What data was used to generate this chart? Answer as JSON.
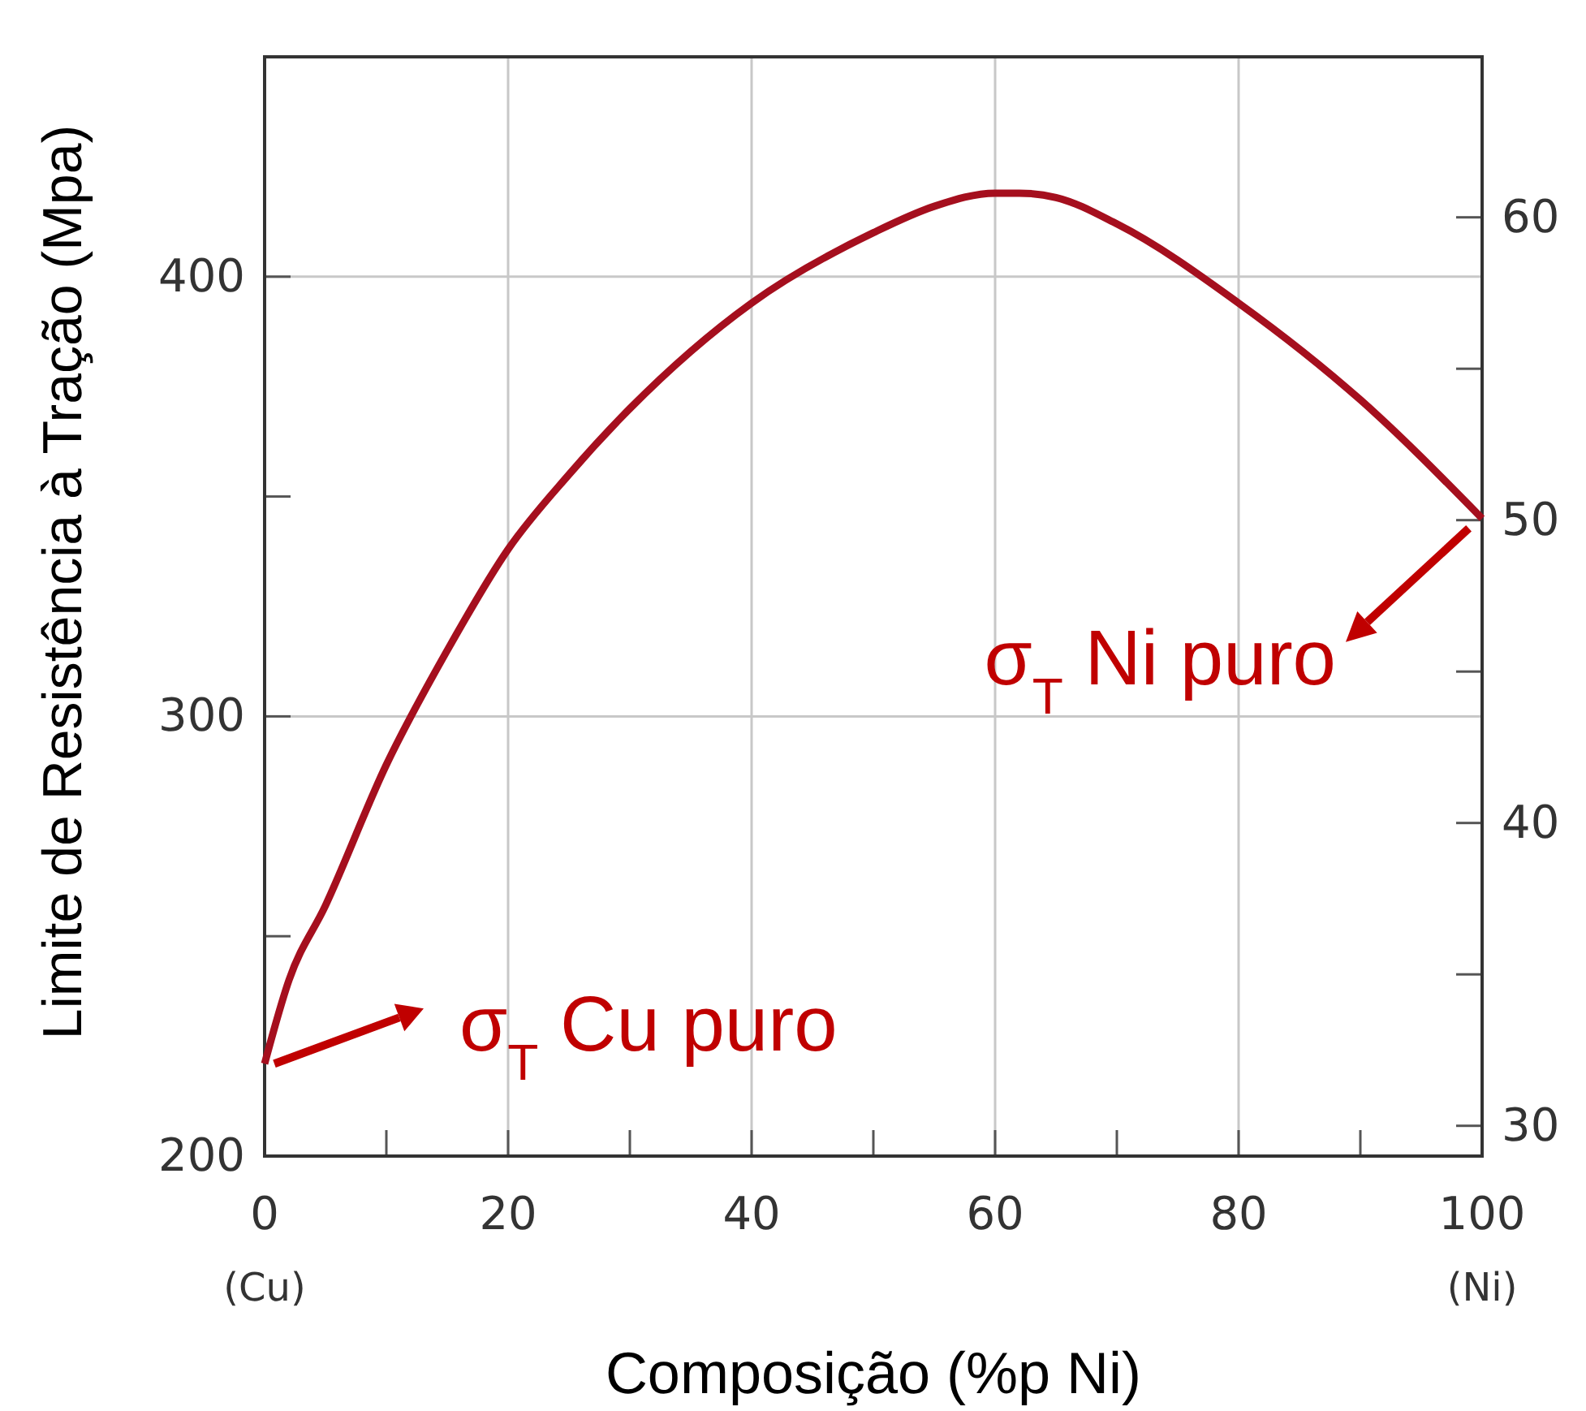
{
  "chart_data": {
    "type": "line",
    "xlabel": "Composição (%p Ni)",
    "ylabel": "Limite de Resistência à Tração  (Mpa)",
    "x": [
      0,
      2,
      5,
      10,
      15,
      20,
      25,
      30,
      40,
      50,
      55,
      60,
      62,
      65,
      70,
      80,
      90,
      100
    ],
    "series": [
      {
        "color": "#a50f1e",
        "values": [
          221,
          240,
          257,
          289,
          315,
          338,
          355,
          370,
          394,
          410,
          416,
          419,
          419,
          418,
          412,
          394,
          372,
          345
        ]
      }
    ],
    "xlim": [
      0,
      100
    ],
    "xticks": [
      {
        "value": 0,
        "label": "0\n(Cu)"
      },
      {
        "value": 10,
        "label": null
      },
      20,
      {
        "value": 30,
        "label": null
      },
      40,
      {
        "value": 50,
        "label": null
      },
      60,
      {
        "value": 70,
        "label": null
      },
      80,
      {
        "value": 90,
        "label": null
      },
      {
        "value": 100,
        "label": "100\n(Ni)"
      }
    ],
    "ylim": [
      200,
      450
    ],
    "yticks": [
      200,
      {
        "value": 250,
        "label": null
      },
      300,
      {
        "value": 350,
        "label": null
      },
      400
    ],
    "y2lim": [
      29.0,
      65.3
    ],
    "y2ticks": [
      30,
      {
        "value": 35,
        "label": null
      },
      40,
      {
        "value": 45,
        "label": null
      },
      50,
      {
        "value": 55,
        "label": null
      },
      60
    ],
    "grid": true,
    "marker": "none",
    "line_style": "solid",
    "annotations": [
      {
        "text": "σ$_{T}$ Cu puro",
        "x": 0,
        "y": 221
      },
      {
        "text": "σ$_{T}$  Ni puro",
        "x": 100,
        "y": 345
      }
    ]
  }
}
